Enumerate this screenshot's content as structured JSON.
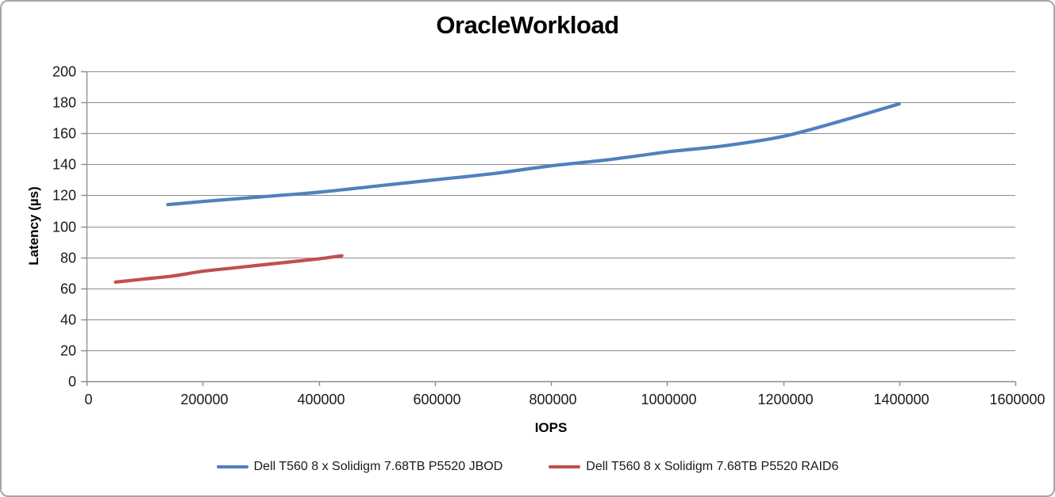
{
  "title": "OracleWorkload",
  "colors": {
    "series_blue": "#4F81BD",
    "series_red": "#C0504D",
    "gridline": "#8c8c8c",
    "axis_line": "#8c8c8c",
    "tick_label": "#1a1a1a",
    "chart_border": "#a6a6a6"
  },
  "chart_data": {
    "type": "line",
    "title": "OracleWorkload",
    "xlabel": "IOPS",
    "ylabel": "Latency (µs)",
    "xlim": [
      0,
      1600000
    ],
    "ylim": [
      0,
      200
    ],
    "x_ticks": [
      0,
      200000,
      400000,
      600000,
      800000,
      1000000,
      1200000,
      1400000,
      1600000
    ],
    "y_ticks": [
      0,
      20,
      40,
      60,
      80,
      100,
      120,
      140,
      160,
      180,
      200
    ],
    "grid": "horizontal",
    "smooth_lines": true,
    "markers": false,
    "legend_position": "bottom-center",
    "series": [
      {
        "key": "jbod",
        "name": "Dell T560 8 x Solidigm 7.68TB P5520 JBOD",
        "color": "#4F81BD",
        "points": [
          [
            140000,
            114
          ],
          [
            200000,
            116
          ],
          [
            300000,
            119
          ],
          [
            400000,
            122
          ],
          [
            500000,
            126
          ],
          [
            600000,
            130
          ],
          [
            700000,
            134
          ],
          [
            800000,
            139
          ],
          [
            900000,
            143
          ],
          [
            1000000,
            148
          ],
          [
            1100000,
            152
          ],
          [
            1200000,
            158
          ],
          [
            1300000,
            168
          ],
          [
            1400000,
            179
          ]
        ]
      },
      {
        "key": "raid6",
        "name": "Dell T560 8 x Solidigm 7.68TB P5520 RAID6",
        "color": "#C0504D",
        "points": [
          [
            50000,
            64
          ],
          [
            100000,
            66
          ],
          [
            150000,
            68
          ],
          [
            200000,
            71
          ],
          [
            250000,
            73
          ],
          [
            300000,
            75
          ],
          [
            350000,
            77
          ],
          [
            400000,
            79
          ],
          [
            440000,
            81
          ]
        ]
      }
    ]
  }
}
